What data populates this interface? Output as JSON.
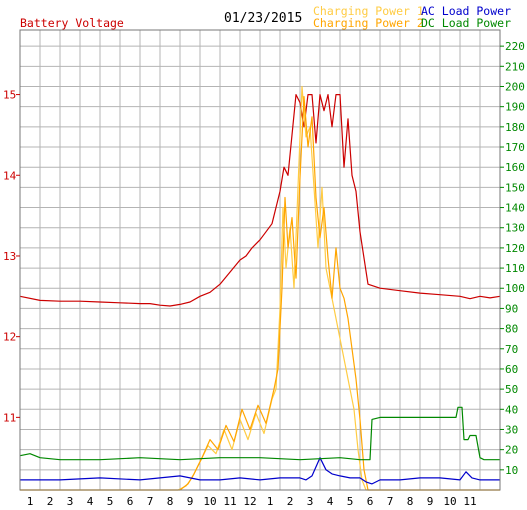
{
  "chart_data": {
    "type": "line",
    "date": "01/23/2015",
    "left_axis": {
      "label": "Battery Voltage",
      "color": "#cc0000",
      "ticks": [
        11,
        12,
        13,
        14,
        15
      ],
      "range": [
        10.1,
        15.8
      ]
    },
    "right_axis": {
      "color": "#008800",
      "ticks": [
        10,
        20,
        30,
        40,
        50,
        60,
        70,
        80,
        90,
        100,
        110,
        120,
        130,
        140,
        150,
        160,
        170,
        180,
        190,
        200,
        210,
        220
      ],
      "range": [
        0,
        228
      ]
    },
    "x_ticks": [
      "1",
      "2",
      "3",
      "4",
      "5",
      "6",
      "7",
      "8",
      "9",
      "10",
      "11",
      "12",
      "1",
      "2",
      "3",
      "4",
      "5",
      "6",
      "7",
      "8",
      "9",
      "10",
      "11"
    ],
    "grid": true,
    "series": [
      {
        "name": "Battery Voltage",
        "axis": "left",
        "color": "#cc0000",
        "x": [
          0,
          1,
          2,
          3,
          4,
          5,
          6,
          6.5,
          7,
          7.5,
          8,
          8.5,
          9,
          9.5,
          10,
          10.5,
          11,
          11.3,
          11.6,
          12,
          12.3,
          12.6,
          12.8,
          13,
          13.2,
          13.4,
          13.6,
          13.8,
          14,
          14.2,
          14.4,
          14.6,
          14.8,
          15,
          15.2,
          15.4,
          15.6,
          15.8,
          16,
          16.2,
          16.4,
          16.6,
          16.8,
          17,
          17.4,
          18,
          19,
          20,
          21,
          22,
          22.5,
          23,
          23.5,
          24
        ],
        "y": [
          12.5,
          12.45,
          12.44,
          12.44,
          12.43,
          12.42,
          12.41,
          12.41,
          12.39,
          12.38,
          12.4,
          12.43,
          12.5,
          12.55,
          12.65,
          12.8,
          12.95,
          13.0,
          13.1,
          13.2,
          13.3,
          13.4,
          13.6,
          13.8,
          14.1,
          14.0,
          14.5,
          15.0,
          14.9,
          14.6,
          15.0,
          15.0,
          14.4,
          15.0,
          14.8,
          15.0,
          14.6,
          15.0,
          15.0,
          14.1,
          14.7,
          14.0,
          13.8,
          13.3,
          12.65,
          12.6,
          12.57,
          12.54,
          12.52,
          12.5,
          12.47,
          12.5,
          12.48,
          12.5
        ]
      },
      {
        "name": "Charging Power 1",
        "axis": "right",
        "color": "#ffcc44",
        "x": [
          0,
          7.9,
          8.3,
          8.6,
          9,
          9.4,
          9.8,
          10.2,
          10.6,
          11,
          11.4,
          11.8,
          12.2,
          12.6,
          12.8,
          13,
          13.15,
          13.3,
          13.5,
          13.7,
          13.9,
          14.1,
          14.3,
          14.5,
          14.7,
          14.9,
          15.1,
          15.3,
          15.5,
          15.7,
          15.9,
          16.1,
          16.3,
          16.5,
          16.7,
          16.9,
          17.1,
          17.3,
          24
        ],
        "y": [
          0,
          0,
          2,
          6,
          14,
          22,
          18,
          30,
          20,
          35,
          25,
          38,
          28,
          45,
          50,
          90,
          140,
          110,
          130,
          100,
          150,
          200,
          175,
          180,
          150,
          120,
          150,
          110,
          100,
          90,
          80,
          70,
          60,
          50,
          40,
          20,
          5,
          0,
          0
        ]
      },
      {
        "name": "Charging Power 2",
        "axis": "right",
        "color": "#ffa500",
        "x": [
          0,
          8.0,
          8.4,
          8.7,
          9.1,
          9.5,
          9.9,
          10.3,
          10.7,
          11.1,
          11.5,
          11.9,
          12.3,
          12.7,
          12.9,
          13.1,
          13.25,
          13.4,
          13.6,
          13.8,
          14.0,
          14.2,
          14.4,
          14.6,
          14.8,
          15.0,
          15.2,
          15.4,
          15.6,
          15.8,
          16.0,
          16.2,
          16.4,
          16.6,
          16.8,
          17.0,
          17.2,
          17.4,
          24
        ],
        "y": [
          0,
          0,
          3,
          8,
          16,
          25,
          20,
          32,
          24,
          40,
          30,
          42,
          33,
          50,
          60,
          100,
          145,
          120,
          135,
          105,
          155,
          195,
          170,
          185,
          145,
          125,
          140,
          115,
          95,
          120,
          100,
          95,
          85,
          70,
          55,
          35,
          10,
          0,
          0
        ]
      },
      {
        "name": "AC Load Power",
        "axis": "right",
        "color": "#0000cc",
        "x": [
          0,
          2,
          4,
          6,
          8,
          9,
          10,
          11,
          12,
          13,
          14,
          14.3,
          14.6,
          15,
          15.3,
          15.6,
          16,
          16.5,
          17,
          17.3,
          17.6,
          18,
          19,
          20,
          21,
          22,
          22.3,
          22.6,
          23,
          24
        ],
        "y": [
          5,
          5,
          6,
          5,
          7,
          5,
          5,
          6,
          5,
          6,
          6,
          5,
          7,
          16,
          10,
          8,
          7,
          6,
          6,
          4,
          3,
          5,
          5,
          6,
          6,
          5,
          9,
          6,
          5,
          5
        ]
      },
      {
        "name": "DC Load Power",
        "axis": "right",
        "color": "#008800",
        "x": [
          0,
          0.5,
          1,
          2,
          4,
          6,
          8,
          10,
          12,
          14,
          16,
          17,
          17.5,
          17.6,
          18,
          20,
          21,
          21.8,
          21.9,
          22.1,
          22.2,
          22.4,
          22.5,
          22.8,
          23,
          23.2,
          24
        ],
        "y": [
          17,
          18,
          16,
          15,
          15,
          16,
          15,
          16,
          16,
          15,
          16,
          15,
          15,
          35,
          36,
          36,
          36,
          36,
          41,
          41,
          25,
          25,
          27,
          27,
          16,
          15,
          15
        ]
      }
    ]
  }
}
